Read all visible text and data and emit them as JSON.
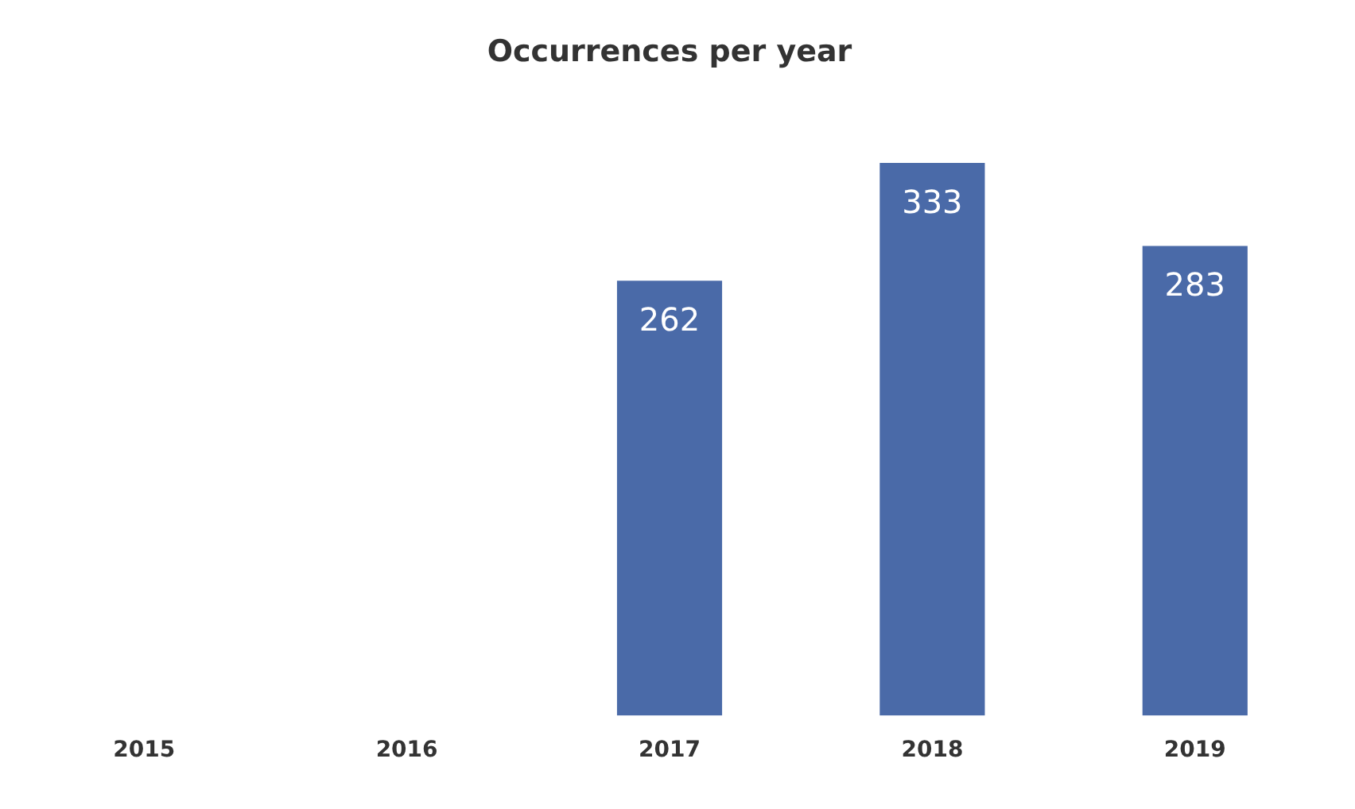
{
  "chart_data": {
    "type": "bar",
    "title": "Occurrences per year",
    "categories": [
      "2015",
      "2016",
      "2017",
      "2018",
      "2019"
    ],
    "values": [
      null,
      null,
      262,
      333,
      283
    ],
    "color": "#4a6aa8",
    "data_labels": true,
    "grid": false,
    "legend": false
  }
}
